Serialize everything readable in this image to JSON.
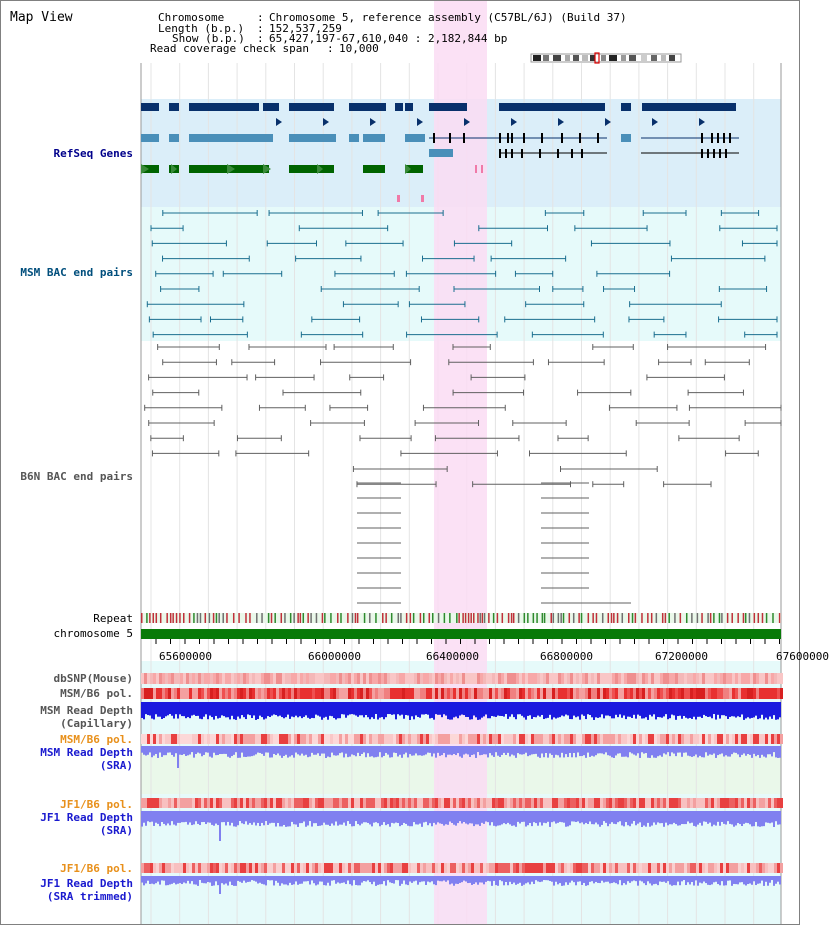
{
  "header": {
    "title": "Map View",
    "chromosome_key": "Chromosome",
    "chromosome_val": "Chromosome 5, reference assembly (C57BL/6J) (Build 37)",
    "length_key": "Length (b.p.)",
    "length_val": "152,537,259",
    "show_key": "Show (b.p.)",
    "show_val": "65,427,197-67,610,040 : 2,182,844 bp",
    "readcov_key": "Read coverage check span",
    "readcov_val": "10,000"
  },
  "tracks": {
    "refseq": "RefSeq Genes",
    "msm_bac": "MSM BAC end pairs",
    "b6n_bac": "B6N BAC end pairs",
    "repeat": "Repeat",
    "chromosome": "chromosome 5",
    "dbsnp": "dbSNP(Mouse)",
    "msm_pol": "MSM/B6 pol.",
    "msm_depth_cap_1": "MSM Read Depth",
    "msm_depth_cap_2": "(Capillary)",
    "msm_pol2": "MSM/B6 pol.",
    "msm_depth_sra_1": "MSM Read Depth",
    "msm_depth_sra_2": "(SRA)",
    "jf1_pol": "JF1/B6 pol.",
    "jf1_depth_sra_1": "JF1 Read Depth",
    "jf1_depth_sra_2": "(SRA)",
    "jf1_pol2": "JF1/B6 pol.",
    "jf1_depth_trim_1": "JF1 Read Depth",
    "jf1_depth_trim_2": "(SRA trimmed)"
  },
  "axis": {
    "ticks": [
      "65600000",
      "66000000",
      "66400000",
      "66800000",
      "67200000",
      "67600000"
    ]
  },
  "colors": {
    "refseq_bg": "#dbeef9",
    "msm_bg": "#e6fafa",
    "highlight": "#fadcf3",
    "gene_dark": "#08306b",
    "gene_mid": "#4a8fb9",
    "gene_green": "#006400",
    "chromosome_green": "#087a08",
    "label_blue": "#00008b",
    "label_teal": "#004e7c",
    "label_orange": "#e8901b",
    "depth_blue": "#1a1adf",
    "depth_light": "#8080f0"
  }
}
